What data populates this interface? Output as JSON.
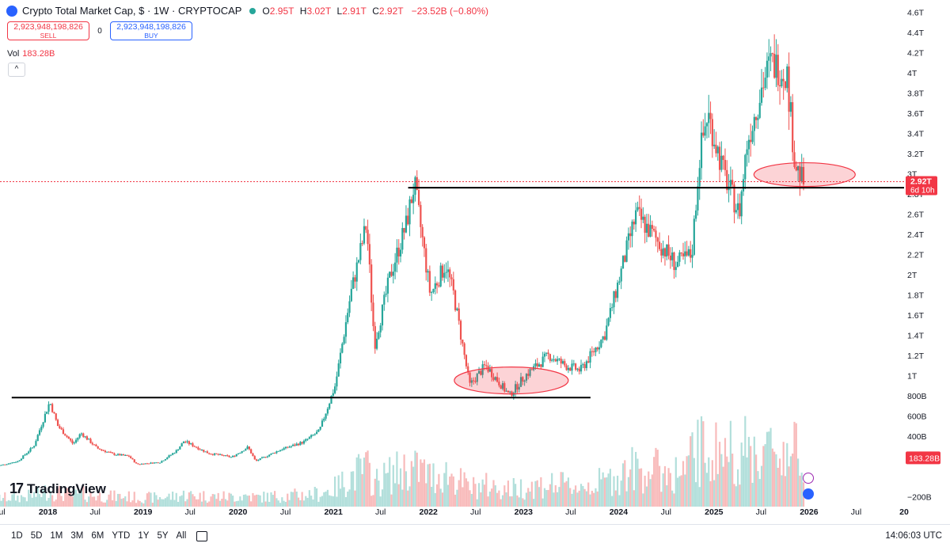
{
  "header": {
    "title": "Crypto Total Market Cap, $ · 1W · CRYPTOCAP",
    "ohlc": [
      {
        "k": "O",
        "v": "2.95T"
      },
      {
        "k": "H",
        "v": "3.02T"
      },
      {
        "k": "L",
        "v": "2.91T"
      },
      {
        "k": "C",
        "v": "2.92T"
      }
    ],
    "change": "−23.52B (−0.80%)"
  },
  "trade": {
    "sell_value": "2,923,948,198,826",
    "sell_label": "SELL",
    "spread": "0",
    "buy_value": "2,923,948,198,826",
    "buy_label": "BUY"
  },
  "volume": {
    "label": "Vol",
    "value": "183.28B"
  },
  "collapse_glyph": "^",
  "logo": {
    "mark": "17",
    "text": "TradingView"
  },
  "bottom": {
    "timeframes": [
      "1D",
      "5D",
      "1M",
      "3M",
      "6M",
      "YTD",
      "1Y",
      "5Y",
      "All"
    ],
    "time": "14:06:03 UTC"
  },
  "colors": {
    "up": "#26a69a",
    "down": "#ef5350",
    "vol_up": "#b2dfdb",
    "vol_down": "#f8bbbb",
    "ellipse": "#f23645"
  },
  "chart_data": {
    "type": "candlestick",
    "title": "Crypto Total Market Cap, $ · 1W · CRYPTOCAP",
    "xlabel": "",
    "ylabel": "",
    "y_ticks": [
      "−200B",
      "200B",
      "400B",
      "600B",
      "800B",
      "1T",
      "1.2T",
      "1.4T",
      "1.6T",
      "1.8T",
      "2T",
      "2.2T",
      "2.4T",
      "2.6T",
      "2.8T",
      "3T",
      "3.2T",
      "3.4T",
      "3.6T",
      "3.8T",
      "4T",
      "4.2T",
      "4.4T",
      "4.6T"
    ],
    "y_range_billions": [
      -300,
      4720
    ],
    "x_ticks": [
      "Jul",
      "2018",
      "Jul",
      "2019",
      "Jul",
      "2020",
      "Jul",
      "2021",
      "Jul",
      "2022",
      "Jul",
      "2023",
      "Jul",
      "2024",
      "Jul",
      "2025",
      "Jul",
      "2026",
      "Jul",
      "20"
    ],
    "x_range": [
      "2017-07",
      "2027-01"
    ],
    "price_label": {
      "value": "2.92T",
      "countdown": "6d 10h"
    },
    "volume_label": "183.28B",
    "price_path_billions": [
      {
        "date": "2017-06",
        "v": 95
      },
      {
        "date": "2017-09",
        "v": 150
      },
      {
        "date": "2017-11",
        "v": 300
      },
      {
        "date": "2018-01",
        "v": 740
      },
      {
        "date": "2018-02",
        "v": 500
      },
      {
        "date": "2018-04",
        "v": 320
      },
      {
        "date": "2018-05",
        "v": 430
      },
      {
        "date": "2018-07",
        "v": 280
      },
      {
        "date": "2018-09",
        "v": 220
      },
      {
        "date": "2018-11",
        "v": 200
      },
      {
        "date": "2018-12",
        "v": 120
      },
      {
        "date": "2019-03",
        "v": 140
      },
      {
        "date": "2019-05",
        "v": 250
      },
      {
        "date": "2019-06",
        "v": 350
      },
      {
        "date": "2019-09",
        "v": 230
      },
      {
        "date": "2019-12",
        "v": 190
      },
      {
        "date": "2020-02",
        "v": 290
      },
      {
        "date": "2020-03",
        "v": 150
      },
      {
        "date": "2020-06",
        "v": 260
      },
      {
        "date": "2020-09",
        "v": 340
      },
      {
        "date": "2020-11",
        "v": 450
      },
      {
        "date": "2021-01",
        "v": 900
      },
      {
        "date": "2021-03",
        "v": 1800
      },
      {
        "date": "2021-05",
        "v": 2500
      },
      {
        "date": "2021-06",
        "v": 1300
      },
      {
        "date": "2021-08",
        "v": 2000
      },
      {
        "date": "2021-10",
        "v": 2500
      },
      {
        "date": "2021-11",
        "v": 2900
      },
      {
        "date": "2022-01",
        "v": 1800
      },
      {
        "date": "2022-03",
        "v": 2100
      },
      {
        "date": "2022-04",
        "v": 1800
      },
      {
        "date": "2022-06",
        "v": 900
      },
      {
        "date": "2022-08",
        "v": 1100
      },
      {
        "date": "2022-11",
        "v": 800
      },
      {
        "date": "2023-01",
        "v": 1000
      },
      {
        "date": "2023-04",
        "v": 1200
      },
      {
        "date": "2023-06",
        "v": 1100
      },
      {
        "date": "2023-08",
        "v": 1050
      },
      {
        "date": "2023-11",
        "v": 1400
      },
      {
        "date": "2024-03",
        "v": 2600
      },
      {
        "date": "2024-06",
        "v": 2300
      },
      {
        "date": "2024-08",
        "v": 2100
      },
      {
        "date": "2024-10",
        "v": 2200
      },
      {
        "date": "2024-11",
        "v": 3200
      },
      {
        "date": "2024-12",
        "v": 3600
      },
      {
        "date": "2025-01",
        "v": 3300
      },
      {
        "date": "2025-02",
        "v": 3000
      },
      {
        "date": "2025-04",
        "v": 2600
      },
      {
        "date": "2025-05",
        "v": 3300
      },
      {
        "date": "2025-07",
        "v": 3900
      },
      {
        "date": "2025-08",
        "v": 4100
      },
      {
        "date": "2025-10",
        "v": 4000
      },
      {
        "date": "2025-11",
        "v": 3100
      },
      {
        "date": "2025-12",
        "v": 2920
      }
    ],
    "annotations": [
      {
        "type": "hline",
        "value_billions": 2860,
        "from": "2021-10",
        "to": "2027-01"
      },
      {
        "type": "hline",
        "value_billions": 780,
        "from": "2017-08",
        "to": "2023-09"
      },
      {
        "type": "ellipse",
        "center": "2022-11",
        "center_billions": 950
      },
      {
        "type": "ellipse",
        "center": "2025-12",
        "center_billions": 2990
      }
    ]
  }
}
